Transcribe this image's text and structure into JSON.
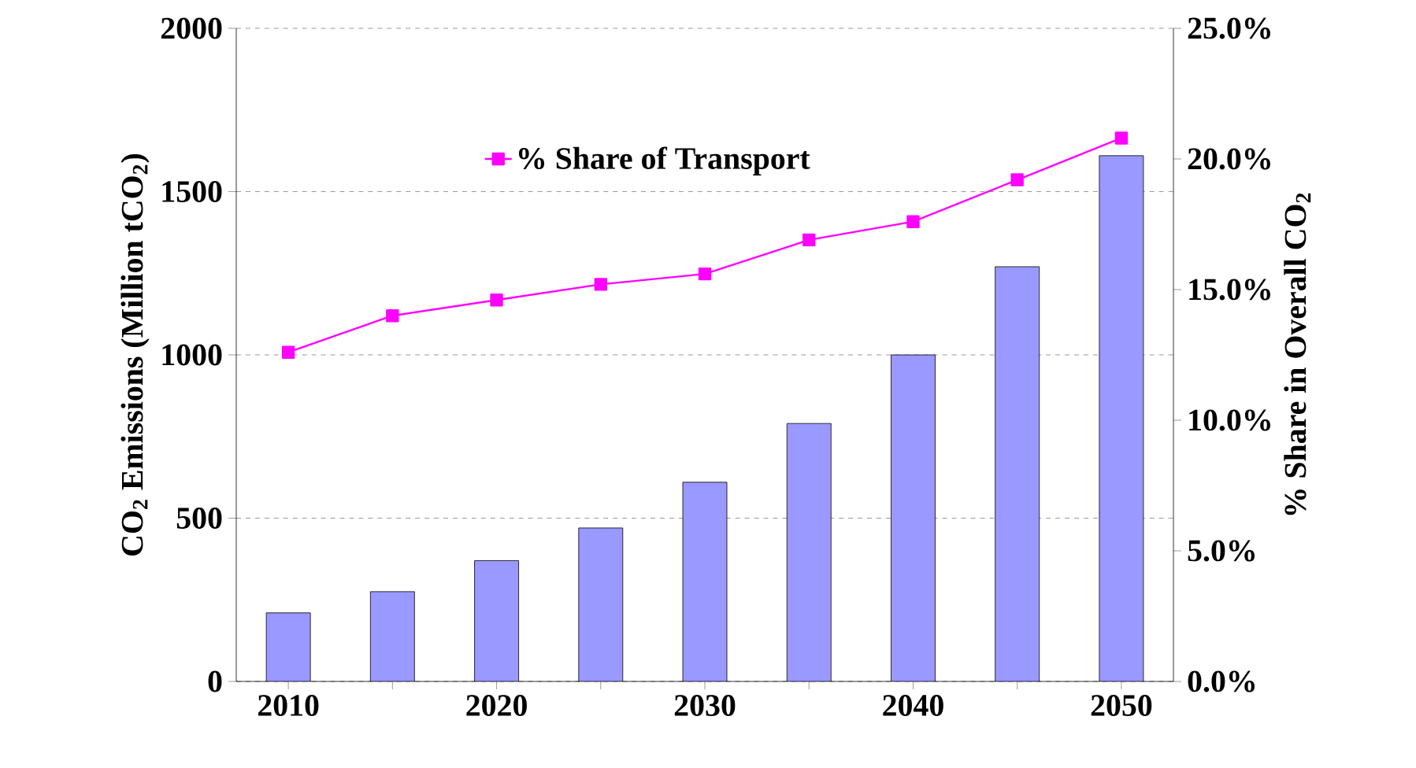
{
  "chart_data": {
    "type": "bar",
    "ylabel": "CO$_{2}$ Emissions (Million tCO$_{2}$)",
    "y2label": "% Share in Overall CO$_{2}$",
    "categories": [
      "2010",
      null,
      "2020",
      null,
      "2030",
      null,
      "2040",
      null,
      "2050"
    ],
    "series": [
      {
        "color": "#9999ff",
        "values": [
          210,
          275,
          370,
          470,
          610,
          790,
          1000,
          1270,
          1610
        ]
      },
      {
        "type": "line",
        "name": "% Share of Transport",
        "color": "#ff00ff",
        "axis": "y2",
        "values": [
          12.6,
          14.0,
          14.6,
          15.2,
          15.6,
          16.9,
          17.6,
          19.2,
          20.8
        ]
      }
    ],
    "ylim": [
      0,
      2000
    ],
    "yticks": [
      0,
      500,
      1000,
      1500,
      2000
    ],
    "y2lim": [
      0,
      25
    ],
    "y2ticks": [
      {
        "value": 0,
        "label": "0.0%"
      },
      {
        "value": 5,
        "label": "5.0%"
      },
      {
        "value": 10,
        "label": "10.0%"
      },
      {
        "value": 15,
        "label": "15.0%"
      },
      {
        "value": 20,
        "label": "20.0%"
      },
      {
        "value": 25,
        "label": "25.0%"
      }
    ],
    "grid": "y",
    "legend": "top",
    "marker": "square",
    "line_style": "solid"
  }
}
